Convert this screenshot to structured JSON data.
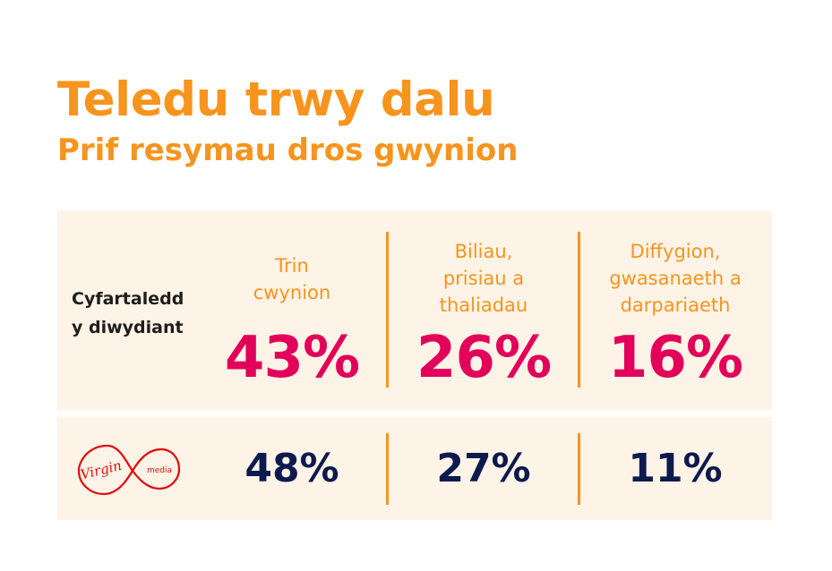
{
  "header": {
    "title": "Teledu trwy dalu",
    "subtitle": "Prif resymau dros gwynion"
  },
  "industry_row": {
    "label_line1": "Cyfartaledd",
    "label_line2": "y diwydiant"
  },
  "columns": [
    {
      "category_lines": [
        "Trin",
        "cwynion"
      ],
      "industry_value": "43%",
      "virgin_value": "48%"
    },
    {
      "category_lines": [
        "Biliau,",
        "prisiau a",
        "thaliadau"
      ],
      "industry_value": "26%",
      "virgin_value": "27%"
    },
    {
      "category_lines": [
        "Diffygion,",
        "gwasanaeth a",
        "darpariaeth"
      ],
      "industry_value": "16%",
      "virgin_value": "11%"
    }
  ],
  "virgin_row": {
    "logo_text_main": "Virgin",
    "logo_text_sub": "media"
  },
  "colors": {
    "accent_orange": "#f7941d",
    "value_pink": "#e2005a",
    "value_navy": "#0d1a4e",
    "panel_bg": "#fdf3e6",
    "logo_red": "#e10a0a"
  }
}
